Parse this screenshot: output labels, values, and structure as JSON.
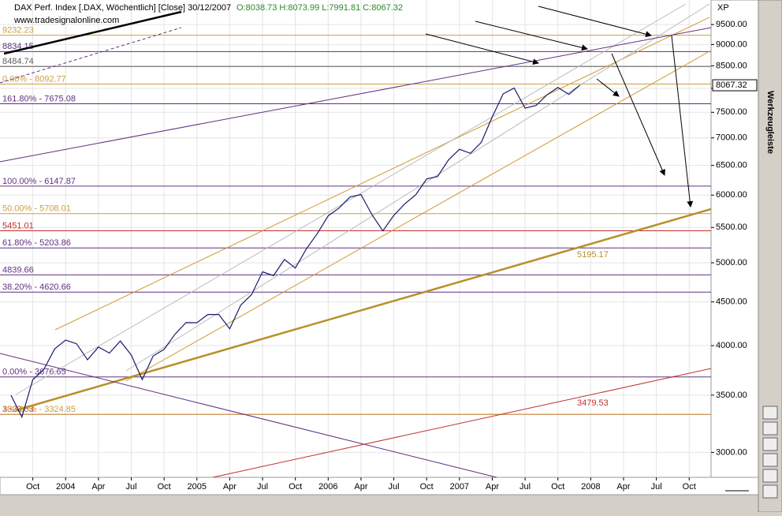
{
  "chart_data": {
    "type": "line",
    "title": "DAX Perf. Index [.DAX, Wöchentlich] [Close] 30/12/2007",
    "ohlc_text": "O:8038.73 H:8073.99 L:7991.81 C:8067.32",
    "source": "www.tradesignalonline.com",
    "last_value_label": "8067.32",
    "corner_label": "XP",
    "toolbar_title": "Werkzeugleiste",
    "log_scale": true,
    "x": [
      "2003-08",
      "2003-09",
      "2003-10",
      "2003-11",
      "2003-12",
      "2004-01",
      "2004-02",
      "2004-03",
      "2004-04",
      "2004-05",
      "2004-06",
      "2004-07",
      "2004-08",
      "2004-09",
      "2004-10",
      "2004-11",
      "2004-12",
      "2005-01",
      "2005-02",
      "2005-03",
      "2005-04",
      "2005-05",
      "2005-06",
      "2005-07",
      "2005-08",
      "2005-09",
      "2005-10",
      "2005-11",
      "2005-12",
      "2006-01",
      "2006-02",
      "2006-03",
      "2006-04",
      "2006-05",
      "2006-06",
      "2006-07",
      "2006-08",
      "2006-09",
      "2006-10",
      "2006-11",
      "2006-12",
      "2007-01",
      "2007-02",
      "2007-03",
      "2007-04",
      "2007-05",
      "2007-06",
      "2007-07",
      "2007-08",
      "2007-09",
      "2007-10",
      "2007-11",
      "2007-12"
    ],
    "series": [
      {
        "name": "DAX Perf. Index",
        "color": "#1a1a6e",
        "values": [
          3500,
          3300,
          3650,
          3750,
          3965,
          4060,
          4020,
          3850,
          3985,
          3920,
          4050,
          3900,
          3650,
          3890,
          3960,
          4125,
          4256,
          4255,
          4350,
          4350,
          4185,
          4460,
          4590,
          4880,
          4830,
          5045,
          4930,
          5190,
          5408,
          5674,
          5796,
          5970,
          6009,
          5692,
          5450,
          5681,
          5860,
          6004,
          6268,
          6309,
          6597,
          6789,
          6715,
          6917,
          7409,
          7883,
          8007,
          7584,
          7638,
          7862,
          8019,
          7871,
          8067
        ]
      }
    ],
    "xlim": [
      "2003-07",
      "2008-12"
    ],
    "xticks": [
      {
        "value": "2003-10",
        "label": "Oct"
      },
      {
        "value": "2004-01",
        "label": "2004"
      },
      {
        "value": "2004-04",
        "label": "Apr"
      },
      {
        "value": "2004-07",
        "label": "Jul"
      },
      {
        "value": "2004-10",
        "label": "Oct"
      },
      {
        "value": "2005-01",
        "label": "2005"
      },
      {
        "value": "2005-04",
        "label": "Apr"
      },
      {
        "value": "2005-07",
        "label": "Jul"
      },
      {
        "value": "2005-10",
        "label": "Oct"
      },
      {
        "value": "2006-01",
        "label": "2006"
      },
      {
        "value": "2006-04",
        "label": "Apr"
      },
      {
        "value": "2006-07",
        "label": "Jul"
      },
      {
        "value": "2006-10",
        "label": "Oct"
      },
      {
        "value": "2007-01",
        "label": "2007"
      },
      {
        "value": "2007-04",
        "label": "Apr"
      },
      {
        "value": "2007-07",
        "label": "Jul"
      },
      {
        "value": "2007-10",
        "label": "Oct"
      },
      {
        "value": "2008-01",
        "label": "2008"
      },
      {
        "value": "2008-04",
        "label": "Apr"
      },
      {
        "value": "2008-07",
        "label": "Jul"
      },
      {
        "value": "2008-10",
        "label": "Oct"
      }
    ],
    "ylim": [
      2805,
      10150
    ],
    "yticks": [
      {
        "value": 3000,
        "label": "3000.00"
      },
      {
        "value": 3500,
        "label": "3500.00"
      },
      {
        "value": 4000,
        "label": "4000.00"
      },
      {
        "value": 4500,
        "label": "4500.00"
      },
      {
        "value": 5000,
        "label": "5000.00"
      },
      {
        "value": 5500,
        "label": "5500.00"
      },
      {
        "value": 6000,
        "label": "6000.00"
      },
      {
        "value": 6500,
        "label": "6500.00"
      },
      {
        "value": 7000,
        "label": "7000.00"
      },
      {
        "value": 7500,
        "label": "7500.00"
      },
      {
        "value": 8000,
        "label": "8000.00"
      },
      {
        "value": 8500,
        "label": "8500.00"
      },
      {
        "value": 9000,
        "label": "9000.00"
      },
      {
        "value": 9500,
        "label": "9500.00"
      }
    ],
    "levels": [
      {
        "value": 9232.23,
        "label": "9232.23",
        "color": "#c8a040"
      },
      {
        "value": 8834.15,
        "label": "8834.15",
        "color": "#603080"
      },
      {
        "value": 8484.74,
        "label": "8484.74",
        "color": "#606060"
      },
      {
        "value": 8092.77,
        "label": "0.00% - 8092.77",
        "color": "#c8a040"
      },
      {
        "value": 7675.08,
        "label": "161.80% - 7675.08",
        "color": "#603080"
      },
      {
        "value": 6147.87,
        "label": "100.00% - 6147.87",
        "color": "#603080"
      },
      {
        "value": 5708.01,
        "label": "50.00% - 5708.01",
        "color": "#c8a040"
      },
      {
        "value": 5451.01,
        "label": "5451.01",
        "color": "#c03030"
      },
      {
        "value": 5203.86,
        "label": "61.80% - 5203.86",
        "color": "#603080"
      },
      {
        "value": 4839.66,
        "label": "4839.66",
        "color": "#603080"
      },
      {
        "value": 4620.66,
        "label": "38.20% - 4620.66",
        "color": "#603080"
      },
      {
        "value": 3676.65,
        "label": "0.00% - 3676.65",
        "color": "#603080"
      },
      {
        "value": 3323.53,
        "label": "3323.53",
        "color": "#c03030"
      },
      {
        "value": 3324.85,
        "label": "100.00% - 3324.85",
        "color": "#c8a040"
      }
    ],
    "trend_labels": [
      "5195.17",
      "3479.53"
    ]
  }
}
